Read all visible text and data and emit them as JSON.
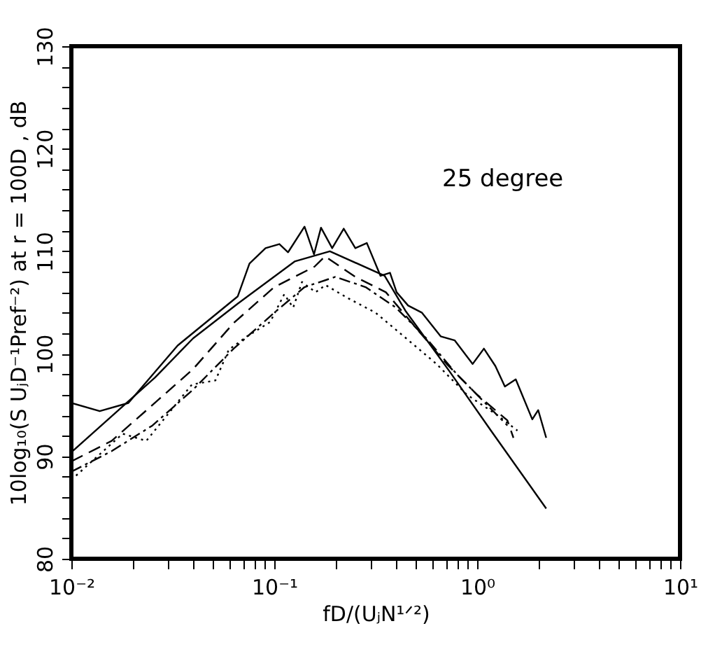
{
  "chart_data": {
    "type": "line",
    "xlabel": "fD/(UⱼN¹ᐟ²)",
    "ylabel": "10log₁₀(S UⱼD⁻¹Pref⁻²)  at r = 100D , dB",
    "annotations": [
      "25 degree"
    ],
    "log": "x",
    "xlim": [
      0.01,
      10
    ],
    "ylim": [
      80,
      130
    ],
    "xticks": [
      {
        "value": 0.01,
        "label": "10⁻²"
      },
      {
        "value": 0.02,
        "label": null
      },
      {
        "value": 0.03,
        "label": null
      },
      {
        "value": 0.04,
        "label": null
      },
      {
        "value": 0.05,
        "label": null
      },
      {
        "value": 0.06,
        "label": null
      },
      {
        "value": 0.07,
        "label": null
      },
      {
        "value": 0.08,
        "label": null
      },
      {
        "value": 0.09,
        "label": null
      },
      {
        "value": 0.1,
        "label": "10⁻¹"
      },
      {
        "value": 0.2,
        "label": null
      },
      {
        "value": 0.3,
        "label": null
      },
      {
        "value": 0.4,
        "label": null
      },
      {
        "value": 0.5,
        "label": null
      },
      {
        "value": 0.6,
        "label": null
      },
      {
        "value": 0.7,
        "label": null
      },
      {
        "value": 0.8,
        "label": null
      },
      {
        "value": 0.9,
        "label": null
      },
      {
        "value": 1,
        "label": "10⁰"
      },
      {
        "value": 2,
        "label": null
      },
      {
        "value": 3,
        "label": null
      },
      {
        "value": 4,
        "label": null
      },
      {
        "value": 5,
        "label": null
      },
      {
        "value": 6,
        "label": null
      },
      {
        "value": 7,
        "label": null
      },
      {
        "value": 8,
        "label": null
      },
      {
        "value": 9,
        "label": null
      },
      {
        "value": 10,
        "label": "10¹"
      }
    ],
    "yticks": [
      80,
      {
        "value": 82,
        "label": null
      },
      {
        "value": 84,
        "label": null
      },
      {
        "value": 86,
        "label": null
      },
      {
        "value": 88,
        "label": null
      },
      90,
      {
        "value": 92,
        "label": null
      },
      {
        "value": 94,
        "label": null
      },
      {
        "value": 96,
        "label": null
      },
      {
        "value": 98,
        "label": null
      },
      100,
      {
        "value": 102,
        "label": null
      },
      {
        "value": 104,
        "label": null
      },
      {
        "value": 106,
        "label": null
      },
      {
        "value": 108,
        "label": null
      },
      110,
      {
        "value": 112,
        "label": null
      },
      {
        "value": 114,
        "label": null
      },
      {
        "value": 116,
        "label": null
      },
      {
        "value": 118,
        "label": null
      },
      120,
      {
        "value": 122,
        "label": null
      },
      {
        "value": 124,
        "label": null
      },
      {
        "value": 126,
        "label": null
      },
      {
        "value": 128,
        "label": null
      },
      130
    ],
    "series": [
      {
        "color": "#000000",
        "line_style": "solid",
        "x": [
          0.01,
          0.0259,
          0.0398,
          0.0662,
          0.126,
          0.188,
          0.35,
          0.443,
          0.73,
          1.17,
          2.19
        ],
        "values": [
          90.4,
          97.7,
          101.5,
          104.9,
          109.0,
          110.0,
          107.6,
          104.2,
          98.3,
          92.5,
          84.9
        ]
      },
      {
        "color": "#000000",
        "line_style": "solid",
        "x": [
          0.01,
          0.0138,
          0.0191,
          0.0334,
          0.0661,
          0.0755,
          0.0906,
          0.106,
          0.117,
          0.141,
          0.157,
          0.17,
          0.193,
          0.22,
          0.251,
          0.286,
          0.334,
          0.372,
          0.401,
          0.457,
          0.535,
          0.661,
          0.776,
          0.95,
          1.08,
          1.23,
          1.37,
          1.55,
          1.87,
          2.0,
          2.19
        ],
        "values": [
          95.2,
          94.4,
          95.2,
          100.8,
          105.6,
          108.8,
          110.3,
          110.7,
          109.9,
          112.4,
          109.7,
          112.3,
          110.3,
          112.2,
          110.3,
          110.8,
          107.6,
          107.9,
          106.0,
          104.7,
          104.0,
          101.7,
          101.3,
          99.0,
          100.5,
          98.8,
          96.8,
          97.5,
          93.6,
          94.5,
          91.8
        ]
      },
      {
        "color": "#000000",
        "line_style": "dashed",
        "x": [
          0.01,
          0.0158,
          0.0251,
          0.0398,
          0.0631,
          0.1,
          0.158,
          0.178,
          0.251,
          0.355,
          0.501,
          0.708,
          1,
          1.41,
          1.51
        ],
        "values": [
          89.5,
          91.5,
          95,
          98.5,
          103,
          106.5,
          108.5,
          109.5,
          107.5,
          106,
          102.5,
          99,
          96,
          93.5,
          91.8
        ]
      },
      {
        "color": "#000000",
        "line_style": "dashdot",
        "x": [
          0.01,
          0.0158,
          0.0251,
          0.0398,
          0.0631,
          0.1,
          0.141,
          0.2,
          0.282,
          0.398,
          0.562,
          0.794,
          1.12,
          1.41
        ],
        "values": [
          88.5,
          90.5,
          93,
          96.5,
          100.5,
          104,
          106.5,
          107.5,
          106.5,
          104.5,
          101.5,
          98,
          95,
          93
        ]
      },
      {
        "color": "#000000",
        "line_style": "dotted",
        "x": [
          0.01,
          0.0179,
          0.0234,
          0.0393,
          0.0513,
          0.0597,
          0.0735,
          0.0955,
          0.112,
          0.124,
          0.137,
          0.16,
          0.179,
          0.232,
          0.316,
          0.447,
          0.631,
          0.891,
          1.26,
          1.58
        ],
        "values": [
          87.7,
          92.2,
          91.5,
          97.0,
          97.4,
          100.4,
          101.7,
          103.1,
          105.8,
          104.5,
          107.0,
          106.0,
          106.7,
          105.4,
          104,
          101.5,
          99,
          96,
          94,
          92.5
        ]
      }
    ]
  }
}
